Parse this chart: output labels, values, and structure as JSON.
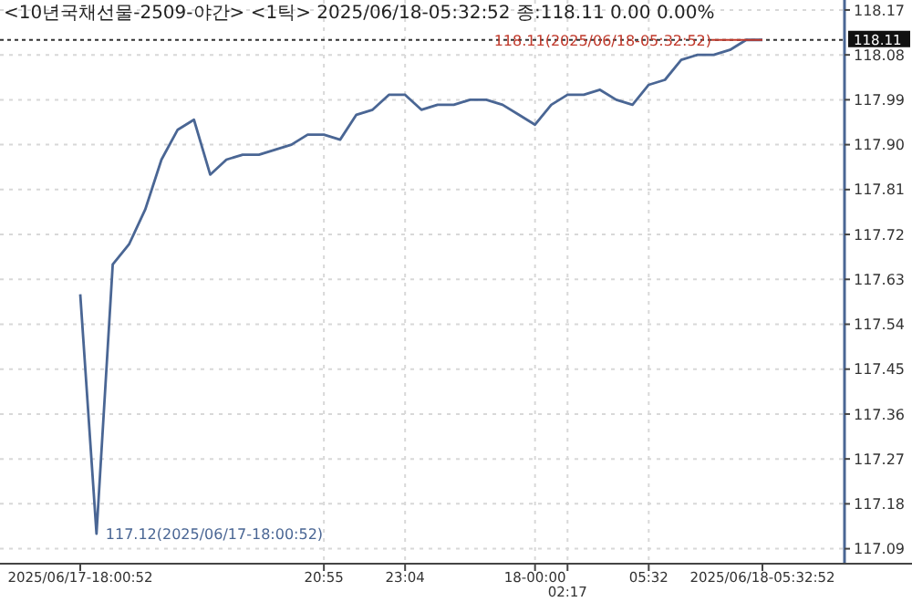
{
  "chart_data": {
    "type": "line",
    "title": "<10년국채선물-2509-야간> <1틱> 2025/06/18-05:32:52 종:118.11 0.00 0.00%",
    "categories": [
      "2025/06/17-18:00:52",
      null,
      null,
      null,
      null,
      null,
      null,
      null,
      null,
      null,
      null,
      null,
      null,
      null,
      null,
      "20:55",
      null,
      null,
      null,
      null,
      "23:04",
      null,
      null,
      null,
      null,
      null,
      null,
      null,
      "18-00:00",
      null,
      "02:17",
      null,
      null,
      null,
      null,
      "05:32",
      null,
      null,
      null,
      null,
      null,
      null,
      "2025/06/18-05:32:52"
    ],
    "series": [
      {
        "color": "#4a6694",
        "values": [
          117.6,
          117.12,
          117.66,
          117.7,
          117.77,
          117.87,
          117.93,
          117.95,
          117.84,
          117.87,
          117.88,
          117.88,
          117.89,
          117.9,
          117.92,
          117.92,
          117.91,
          117.96,
          117.97,
          118.0,
          118.0,
          117.97,
          117.98,
          117.98,
          117.99,
          117.99,
          117.98,
          117.96,
          117.94,
          117.98,
          118.0,
          118.0,
          118.01,
          117.99,
          117.98,
          118.02,
          118.03,
          118.07,
          118.08,
          118.08,
          118.09,
          118.11,
          118.11
        ]
      }
    ],
    "ylim": [
      117.06,
      118.19
    ],
    "yticks": [
      117.09,
      117.18,
      117.27,
      117.36,
      117.45,
      117.54,
      117.63,
      117.72,
      117.81,
      {
        "value": 117.9,
        "label": "117.90"
      },
      117.99,
      118.08,
      118.17
    ],
    "grid": true,
    "marker": "none",
    "line_style": "solid",
    "ref_lines": [
      {
        "axis": "y",
        "value": 118.11,
        "label": "118.11",
        "color": "#333333",
        "line_style": "dotted"
      }
    ],
    "annotations": [
      "117.12(2025/06/17-18:00:52)",
      {
        "text": "118.11(2025/06/18-05:32:52)",
        "x": "2025/06/18-05:32:52",
        "y": 118.11
      }
    ]
  }
}
